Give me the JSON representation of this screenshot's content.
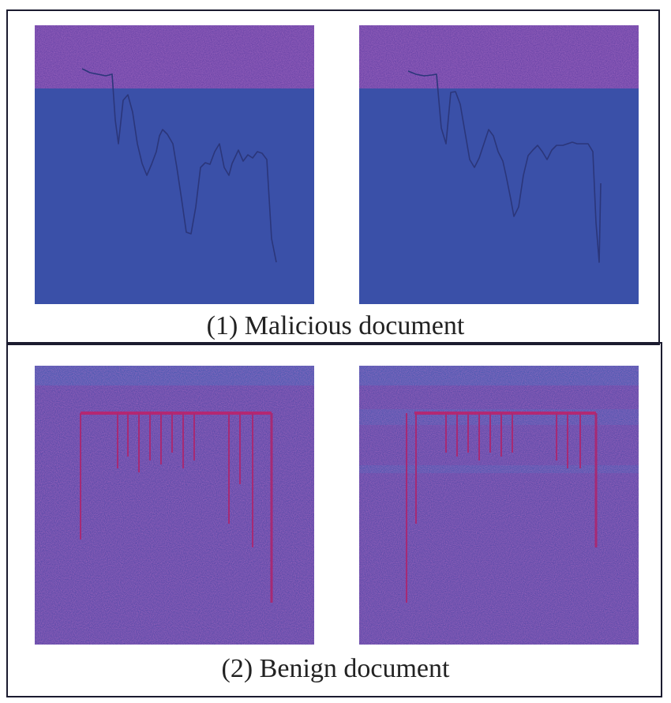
{
  "panels": [
    {
      "caption": "(1) Malicious document"
    },
    {
      "caption": "(2) Benign document"
    }
  ],
  "colors": {
    "malicious_band": "#7a3fa6",
    "malicious_background": "#3a50a8",
    "malicious_trace": "#2c3a7e",
    "benign_base": "#6a4aa6",
    "benign_trace": "#c0246a"
  }
}
